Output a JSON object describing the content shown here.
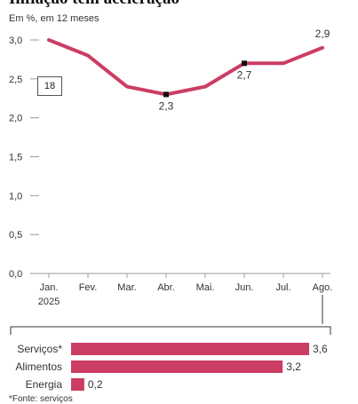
{
  "header": {
    "title": "Inflação tem aceleração",
    "subtitle": "Em %, em 12 meses",
    "badge": "18",
    "footnote": "*Fonte: serviços"
  },
  "colors": {
    "series": "#cc3d63",
    "axis": "#9a9a9a",
    "text": "#333333",
    "marker": "#111111"
  },
  "chart_data": [
    {
      "type": "line",
      "categories": [
        "Jan.",
        "Fev.",
        "Mar.",
        "Abr.",
        "Mai.",
        "Jun.",
        "Jul.",
        "Ago."
      ],
      "category_sublabels": [
        "2025",
        "",
        "",
        "",
        "",
        "",
        "",
        ""
      ],
      "series": [
        {
          "values": [
            3.0,
            2.8,
            2.4,
            2.3,
            2.4,
            2.7,
            2.7,
            2.9
          ]
        }
      ],
      "yticks": [
        "0,0",
        "0,5",
        "1,0",
        "1,5",
        "2,0",
        "2,5",
        "3,0"
      ],
      "ylim": [
        0,
        3.0
      ],
      "grid": false,
      "markers": [
        3,
        5
      ],
      "data_labels": [
        {
          "index": 3,
          "text": "2,3"
        },
        {
          "index": 5,
          "text": "2,7"
        },
        {
          "index": 7,
          "text": "2,9"
        }
      ]
    },
    {
      "type": "bar",
      "orientation": "horizontal",
      "categories": [
        "Serviços*",
        "Alimentos",
        "Energia"
      ],
      "values": [
        3.6,
        3.2,
        0.2
      ],
      "value_labels": [
        "3,6",
        "3,2",
        "0,2"
      ],
      "xlim": [
        0,
        3.6
      ]
    }
  ]
}
